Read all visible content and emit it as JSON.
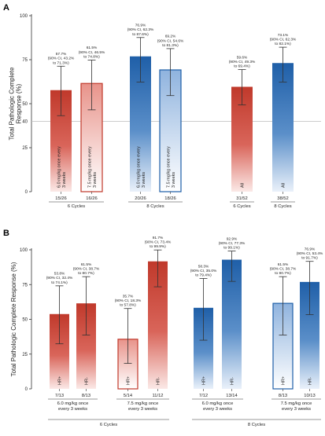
{
  "colors": {
    "red": "#c0392b",
    "blue": "#1f5fa8",
    "axis": "#333333",
    "refline": "#bbbbbb"
  },
  "chart_data": [
    {
      "type": "bar",
      "panel": "A",
      "ylabel": "Total Pathologic Complete\nResponse (%)",
      "ylim": [
        0,
        100
      ],
      "yticks": [
        0,
        25,
        50,
        75,
        100
      ],
      "reference_line": {
        "value": 40,
        "label": "40"
      },
      "bars": [
        {
          "value": 57.7,
          "ci_low": 43.2,
          "ci_high": 71.3,
          "annotation": [
            "57.7%",
            "(90% CI, 43.2%",
            "to 71.3%)"
          ],
          "count": "15/26",
          "inbar": "6.0 mg/kg once every\n3 weeks",
          "color": "red",
          "style": "fill"
        },
        {
          "value": 61.5,
          "ci_low": 46.5,
          "ci_high": 74.8,
          "annotation": [
            "61.5%",
            "(90% CI, 46.5%",
            "to 74.8%)"
          ],
          "count": "16/26",
          "inbar": "7.5 mg/kg once every\n3 weeks",
          "color": "red",
          "style": "outline"
        },
        {
          "value": 76.9,
          "ci_low": 62.3,
          "ci_high": 87.6,
          "annotation": [
            "76.9%",
            "(90% CI, 62.3%",
            "to 87.6%)"
          ],
          "count": "20/26",
          "inbar": "6.0 mg/kg once every\n3 weeks",
          "color": "blue",
          "style": "fill"
        },
        {
          "value": 69.2,
          "ci_low": 54.6,
          "ci_high": 81.3,
          "annotation": [
            "69.2%",
            "(90% CI, 54.6%",
            "to 81.3%)"
          ],
          "count": "18/26",
          "inbar": "7.5 mg/kg once every\n3 weeks",
          "color": "blue",
          "style": "outline"
        },
        {
          "value": 59.6,
          "ci_low": 49.3,
          "ci_high": 69.4,
          "annotation": [
            "59.6%",
            "(90% CI, 49.3%",
            "to 69.4%)"
          ],
          "count": "31/52",
          "inbar": "All",
          "color": "red",
          "style": "fill"
        },
        {
          "value": 73.1,
          "ci_low": 62.3,
          "ci_high": 82.1,
          "annotation": [
            "73.1%",
            "(90% CI, 62.3%",
            "to 82.1%)"
          ],
          "count": "38/52",
          "inbar": "All",
          "color": "blue",
          "style": "fill"
        }
      ],
      "groups": [
        {
          "label": "6 Cycles",
          "bars": [
            0,
            1
          ]
        },
        {
          "label": "8 Cycles",
          "bars": [
            2,
            3
          ]
        },
        {
          "label": "6 Cycles",
          "bars": [
            4
          ]
        },
        {
          "label": "8 Cycles",
          "bars": [
            5
          ]
        }
      ]
    },
    {
      "type": "bar",
      "panel": "B",
      "ylabel": "Total Pathologic Complete Response (%)",
      "ylim": [
        0,
        100
      ],
      "yticks": [
        0,
        25,
        50,
        75,
        100
      ],
      "bars": [
        {
          "value": 53.8,
          "ci_low": 32.4,
          "ci_high": 74.1,
          "annotation": [
            "53.8%",
            "(90% CI, 32.4%",
            "to 74.1%)"
          ],
          "count": "7/13",
          "inbar": "HR+",
          "color": "red",
          "style": "fill"
        },
        {
          "value": 61.5,
          "ci_low": 38.7,
          "ci_high": 80.7,
          "annotation": [
            "61.5%",
            "(90% CI, 38.7%",
            "to 80.7%)"
          ],
          "count": "8/13",
          "inbar": "HR-",
          "color": "red",
          "style": "fill"
        },
        {
          "value": 35.7,
          "ci_low": 18.3,
          "ci_high": 57.8,
          "annotation": [
            "35.7%",
            "(90% CI, 18.3%",
            "to 57.8%)"
          ],
          "count": "5/14",
          "inbar": "HR+",
          "color": "red",
          "style": "outline"
        },
        {
          "value": 91.7,
          "ci_low": 73.4,
          "ci_high": 99.9,
          "annotation": [
            "91.7%",
            "(90% CI, 73.4%",
            "to 99.9%)"
          ],
          "count": "11/12",
          "inbar": "HR-",
          "color": "red",
          "style": "fill"
        },
        {
          "value": 58.3,
          "ci_low": 35.0,
          "ci_high": 79.4,
          "annotation": [
            "58.3%",
            "(90% CI, 35.0%",
            "to 79.4%)"
          ],
          "count": "7/12",
          "inbar": "HR+",
          "color": "blue",
          "style": "fill"
        },
        {
          "value": 92.9,
          "ci_low": 77.3,
          "ci_high": 99.1,
          "annotation": [
            "92.9%",
            "(90% CI, 77.3%",
            "to 99.1%)"
          ],
          "count": "13/14",
          "inbar": "HR-",
          "color": "blue",
          "style": "fill"
        },
        {
          "value": 61.5,
          "ci_low": 38.7,
          "ci_high": 80.7,
          "annotation": [
            "61.5%",
            "(90% CI, 38.7%",
            "to 80.7%)"
          ],
          "count": "8/13",
          "inbar": "HR+",
          "color": "blue",
          "style": "outline"
        },
        {
          "value": 76.9,
          "ci_low": 53.4,
          "ci_high": 91.7,
          "annotation": [
            "76.9%",
            "(90% CI, 53.4%",
            "to 91.7%)"
          ],
          "count": "10/13",
          "inbar": "HR-",
          "color": "blue",
          "style": "fill"
        }
      ],
      "groups": [
        {
          "label": "6.0 mg/kg once\nevery 3 weeks",
          "bars": [
            0,
            1
          ]
        },
        {
          "label": "7.5 mg/kg once\nevery 3 weeks",
          "bars": [
            2,
            3
          ]
        },
        {
          "label": "6.0 mg/kg once\nevery 3 weeks",
          "bars": [
            4,
            5
          ]
        },
        {
          "label": "7.5 mg/kg once\nevery 3 weeks",
          "bars": [
            6,
            7
          ]
        }
      ],
      "supergroups": [
        {
          "label": "6 Cycles",
          "groups": [
            0,
            1
          ]
        },
        {
          "label": "8 Cycles",
          "groups": [
            2,
            3
          ]
        }
      ]
    }
  ]
}
